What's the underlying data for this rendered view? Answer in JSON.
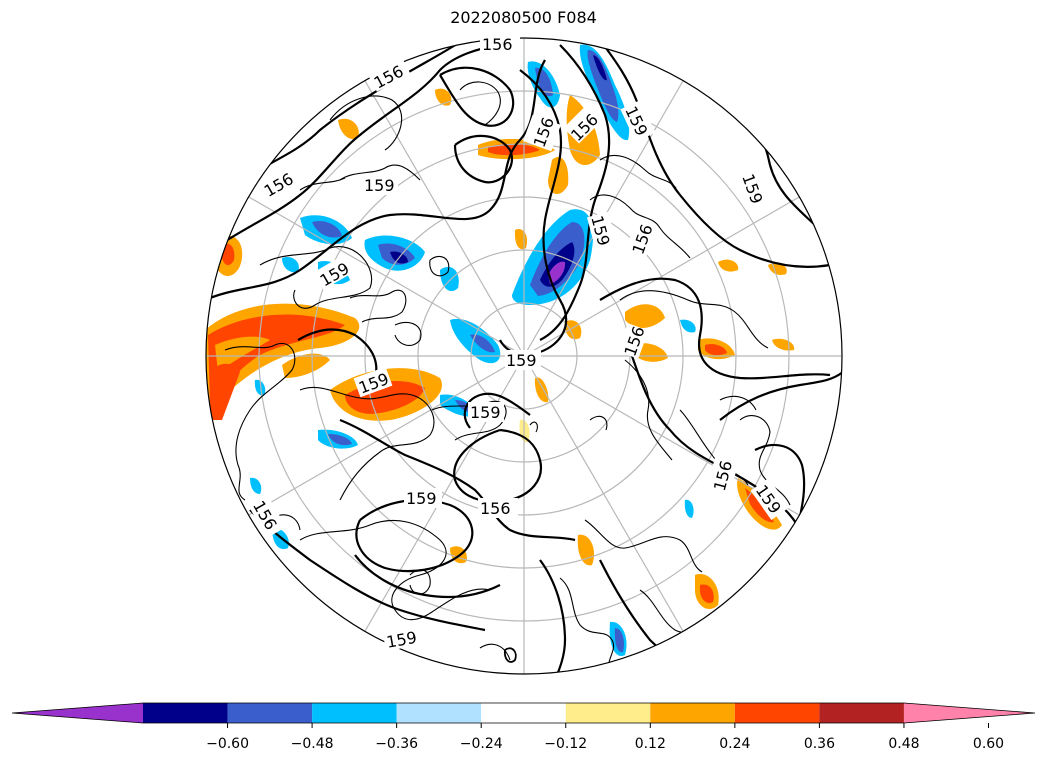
{
  "title": "2022080500 F084",
  "map": {
    "projection": "north-polar-stereographic",
    "contour_labels": [
      "156",
      "156",
      "156",
      "159",
      "156",
      "156",
      "159",
      "159",
      "159",
      "159",
      "159",
      "156",
      "156",
      "159",
      "156",
      "159",
      "159",
      "156",
      "159",
      "156",
      "159"
    ]
  },
  "colorbar": {
    "ticks": [
      "−0.60",
      "−0.48",
      "−0.36",
      "−0.24",
      "−0.12",
      "0.12",
      "0.24",
      "0.36",
      "0.48",
      "0.60"
    ],
    "colors": [
      "#9932cc",
      "#00008b",
      "#3a5fcd",
      "#00bfff",
      "#b0e2ff",
      "#ffffff",
      "#ffec8b",
      "#ffa500",
      "#ff4500",
      "#b22222",
      "#ff82ab"
    ]
  }
}
